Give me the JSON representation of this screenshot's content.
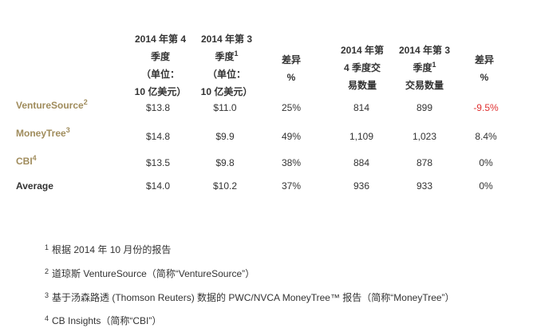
{
  "headers": {
    "q4_dollars_prefix": "2014 年第 4\n季度\n（单位：\n10 亿美元）",
    "q3_dollars_prefix": "2014 年第 3\n季度",
    "q3_dollars_sup": "1",
    "q3_dollars_suffix": "（单位：\n10 亿美元）",
    "diff_dollars": "差异\n%",
    "q4_deals": "2014 年第\n4 季度交\n易数量",
    "q3_deals_prefix": "2014 年第 3\n季度",
    "q3_deals_sup": "1",
    "q3_deals_suffix": "交易数量",
    "diff_deals": "差异\n%"
  },
  "rows": [
    {
      "label": "VentureSource",
      "sup": "2",
      "q4_dollars": "$13.8",
      "q3_dollars": "$11.0",
      "diff_dollars": "25%",
      "q4_deals": "814",
      "q3_deals": "899",
      "diff_deals": "-9.5%"
    },
    {
      "label": "MoneyTree",
      "sup": "3",
      "q4_dollars": "$14.8",
      "q3_dollars": "$9.9",
      "diff_dollars": "49%",
      "q4_deals": "1,109",
      "q3_deals": "1,023",
      "diff_deals": "8.4%"
    },
    {
      "label": "CBI",
      "sup": "4",
      "q4_dollars": "$13.5",
      "q3_dollars": "$9.8",
      "diff_dollars": "38%",
      "q4_deals": "884",
      "q3_deals": "878",
      "diff_deals": "0%"
    },
    {
      "label": "Average",
      "sup": "",
      "q4_dollars": "$14.0",
      "q3_dollars": "$10.2",
      "diff_dollars": "37%",
      "q4_deals": "936",
      "q3_deals": "933",
      "diff_deals": "0%"
    }
  ],
  "colors": {
    "brand": "#a08c5c",
    "negative": "#e03030",
    "text": "#333333"
  },
  "footnotes": [
    {
      "num": "1",
      "text": "根据 2014 年 10 月份的报告"
    },
    {
      "num": "2",
      "text": "道琼斯 VentureSource（简称“VentureSource”）"
    },
    {
      "num": "3",
      "text": "基于汤森路透 (Thomson Reuters) 数据的 PWC/NVCA MoneyTree™ 报告（简称“MoneyTree”）"
    },
    {
      "num": "4",
      "text": "CB Insights（简称“CBI”）"
    }
  ]
}
